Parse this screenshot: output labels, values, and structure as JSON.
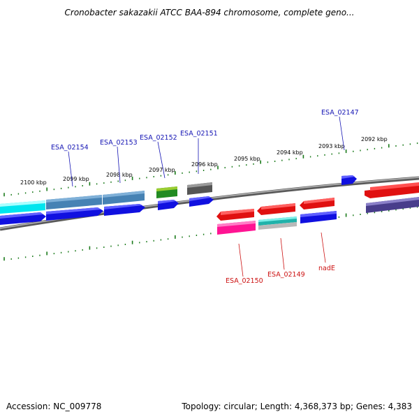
{
  "title": "Cronobacter sakazakii ATCC BAA-894 chromosome, complete geno...",
  "footer": {
    "accession": "Accession: NC_009778",
    "summary": "Topology: circular; Length: 4,368,373 bp; Genes: 4,383"
  },
  "colors": {
    "backbone": "#808080",
    "tick": "#1a7a1a",
    "forward_label": "#1414b4",
    "reverse_label": "#cc1010"
  },
  "ticks": [
    {
      "label": "2100 kbp"
    },
    {
      "label": "2099 kbp"
    },
    {
      "label": "2098 kbp"
    },
    {
      "label": "2097 kbp"
    },
    {
      "label": "2096 kbp"
    },
    {
      "label": "2095 kbp"
    },
    {
      "label": "2094 kbp"
    },
    {
      "label": "2093 kbp"
    },
    {
      "label": "2092 kbp"
    }
  ],
  "labels": {
    "forward": [
      {
        "text": "ESA_02154"
      },
      {
        "text": "ESA_02153"
      },
      {
        "text": "ESA_02152"
      },
      {
        "text": "ESA_02151"
      },
      {
        "text": "ESA_02147"
      }
    ],
    "reverse": [
      {
        "text": "ESA_02150"
      },
      {
        "text": "ESA_02149"
      },
      {
        "text": "nadE"
      }
    ]
  }
}
